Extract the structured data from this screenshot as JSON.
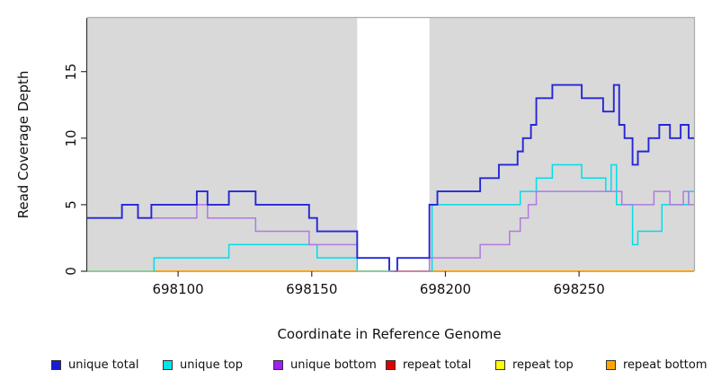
{
  "chart_data": {
    "type": "step-line",
    "title": "",
    "xlabel": "Coordinate in Reference Genome",
    "ylabel": "Read Coverage Depth",
    "xlim": [
      698066,
      698293
    ],
    "ylim": [
      0,
      19.03
    ],
    "grid": false,
    "plot_background": "#d9d9d9",
    "border_color": "#ababab",
    "axis_color": "#333333",
    "xticks": [
      {
        "value": 698100,
        "label": "698100"
      },
      {
        "value": 698150,
        "label": "698150"
      },
      {
        "value": 698200,
        "label": "698200"
      },
      {
        "value": 698250,
        "label": "698250"
      }
    ],
    "yticks": [
      {
        "value": 0,
        "label": "0"
      },
      {
        "value": 5,
        "label": "5"
      },
      {
        "value": 10,
        "label": "10"
      },
      {
        "value": 15,
        "label": "15"
      }
    ],
    "highlight_band": {
      "from": 698167,
      "to": 698194,
      "color": "#ffffff"
    },
    "series": [
      {
        "name": "repeat total",
        "color": "#e01010",
        "width": 1.4,
        "points": [
          [
            698066,
            0
          ]
        ]
      },
      {
        "name": "repeat top",
        "color": "#ffff00",
        "width": 1.4,
        "points": [
          [
            698066,
            0
          ]
        ]
      },
      {
        "name": "repeat bottom",
        "color": "#ff9d00",
        "width": 1.6,
        "points": [
          [
            698066,
            0
          ]
        ]
      },
      {
        "name": "unique top",
        "color": "#00dde8",
        "width": 1.5,
        "points": [
          [
            698066,
            0
          ],
          [
            698091,
            1
          ],
          [
            698119,
            2
          ],
          [
            698152,
            1
          ],
          [
            698167,
            0
          ],
          [
            698195,
            5
          ],
          [
            698228,
            6
          ],
          [
            698234,
            7
          ],
          [
            698240,
            8
          ],
          [
            698251,
            7
          ],
          [
            698260,
            6
          ],
          [
            698262,
            8
          ],
          [
            698264,
            5
          ],
          [
            698270,
            2
          ],
          [
            698272,
            3
          ],
          [
            698281,
            5
          ],
          [
            698291,
            6
          ]
        ]
      },
      {
        "name": "unique bottom",
        "color": "#b07ae0",
        "width": 1.5,
        "points": [
          [
            698066,
            4
          ],
          [
            698079,
            5
          ],
          [
            698085,
            4
          ],
          [
            698107,
            5
          ],
          [
            698111,
            4
          ],
          [
            698129,
            3
          ],
          [
            698149,
            2
          ],
          [
            698167,
            1
          ],
          [
            698179,
            0
          ],
          [
            698194,
            1
          ],
          [
            698213,
            2
          ],
          [
            698224,
            3
          ],
          [
            698228,
            4
          ],
          [
            698231,
            5
          ],
          [
            698234,
            6
          ],
          [
            698266,
            5
          ],
          [
            698278,
            6
          ],
          [
            698284,
            5
          ],
          [
            698289,
            6
          ],
          [
            698291,
            5
          ]
        ]
      },
      {
        "name": "unique total",
        "color": "#2626d8",
        "width": 1.9,
        "points": [
          [
            698066,
            4
          ],
          [
            698079,
            5
          ],
          [
            698085,
            4
          ],
          [
            698090,
            5
          ],
          [
            698107,
            6
          ],
          [
            698111,
            5
          ],
          [
            698119,
            6
          ],
          [
            698129,
            5
          ],
          [
            698149,
            4
          ],
          [
            698152,
            3
          ],
          [
            698167,
            1
          ],
          [
            698179,
            0
          ],
          [
            698182,
            1
          ],
          [
            698194,
            5
          ],
          [
            698197,
            6
          ],
          [
            698213,
            7
          ],
          [
            698220,
            8
          ],
          [
            698227,
            9
          ],
          [
            698229,
            10
          ],
          [
            698232,
            11
          ],
          [
            698234,
            13
          ],
          [
            698240,
            14
          ],
          [
            698251,
            13
          ],
          [
            698259,
            12
          ],
          [
            698263,
            14
          ],
          [
            698265,
            11
          ],
          [
            698267,
            10
          ],
          [
            698270,
            8
          ],
          [
            698272,
            9
          ],
          [
            698276,
            10
          ],
          [
            698280,
            11
          ],
          [
            698284,
            10
          ],
          [
            698288,
            11
          ],
          [
            698291,
            10
          ]
        ]
      }
    ],
    "zero_line_overlaps": [
      {
        "from": 698066,
        "to": 698091,
        "color": "#8fcf9f"
      },
      {
        "from": 698167,
        "to": 698181,
        "color": "#8fcf9f"
      },
      {
        "from": 698181,
        "to": 698194,
        "color": "#e27a9b"
      }
    ]
  },
  "legend": {
    "items": [
      {
        "label": "unique total",
        "color": "#1a1ad6"
      },
      {
        "label": "unique top",
        "color": "#00e5ee"
      },
      {
        "label": "unique bottom",
        "color": "#a020f0"
      },
      {
        "label": "repeat total",
        "color": "#e00000"
      },
      {
        "label": "repeat top",
        "color": "#ffff00"
      },
      {
        "label": "repeat bottom",
        "color": "#ffa500"
      }
    ]
  }
}
